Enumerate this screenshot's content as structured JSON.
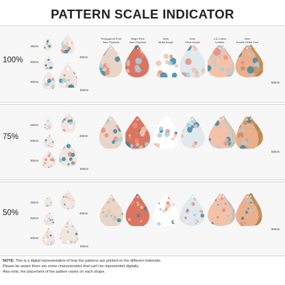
{
  "title": "PATTERN SCALE INDICATOR",
  "rows": [
    {
      "scale": "100%",
      "sizes": [
        "15mm",
        "20mm",
        "30mm",
        "40mm",
        "50mm"
      ],
      "material_size": "60mm"
    },
    {
      "scale": "75%",
      "sizes": [
        "15mm",
        "20mm",
        "30mm",
        "40mm",
        "50mm"
      ],
      "material_size": "60mm"
    },
    {
      "scale": "50%",
      "sizes": [
        "15mm",
        "20mm",
        "30mm",
        "40mm",
        "50mm"
      ],
      "material_size": "60mm"
    }
  ],
  "materials": [
    {
      "line1": "Transparent Print",
      "line2": "3mm Plywood"
    },
    {
      "line1": "Bright Print",
      "line2": "3mm Plywood"
    },
    {
      "line1": "3mm",
      "line2": "White Acrylic"
    },
    {
      "line1": "3mm",
      "line2": "Clear Acrylic"
    },
    {
      "line1": "1.6-1.8mm",
      "line2": "Leather"
    },
    {
      "line1": "2mm",
      "line2": "Double Sided Cork"
    }
  ],
  "note": {
    "label": "NOTE:",
    "line1": "This is a digital representation of how the patterns are printed on the different materials.",
    "line2": "Please be aware there are some characteristics that can't be represented digitally.",
    "line3": "Also note, the placement of the pattern varies on each shape."
  },
  "colors": {
    "band": "#f7f7f7",
    "coral": "#ec8d7a",
    "teal": "#3c88a6",
    "light_blue": "#a9cfe0",
    "peach": "#f4c2a8",
    "cork": "#c9915e",
    "leather": "#c8c8c4"
  }
}
